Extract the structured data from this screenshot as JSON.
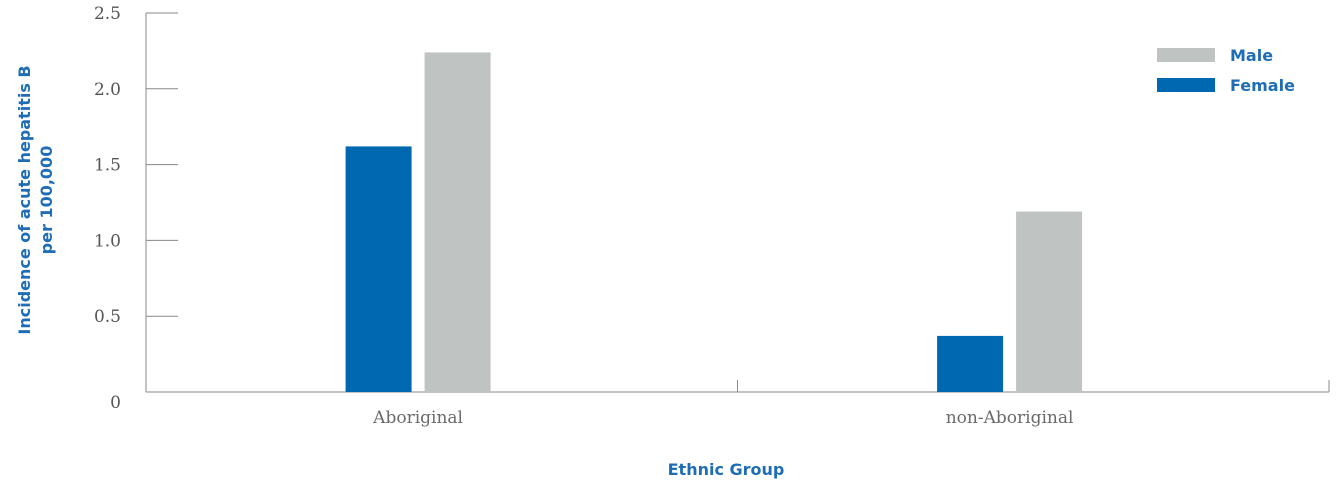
{
  "chart_data": {
    "type": "bar",
    "categories": [
      "Aboriginal",
      "non-Aboriginal"
    ],
    "series": [
      {
        "name": "Female",
        "values": [
          1.62,
          0.37
        ],
        "color": "#0067b1"
      },
      {
        "name": "Male",
        "values": [
          2.24,
          1.19
        ],
        "color": "#bfc3c1"
      }
    ],
    "title": "",
    "xlabel": "Ethnic Group",
    "ylabel": [
      "Incidence of acute hepatitis B",
      "per 100,000"
    ],
    "ylim": [
      0,
      2.5
    ],
    "yticks": [
      "0",
      "0.5",
      "1.0",
      "1.5",
      "2.0",
      "2.5"
    ],
    "legend": {
      "position": "top-right",
      "order": [
        "Male",
        "Female"
      ]
    },
    "grid": false,
    "accent_color": "#1f6eb5",
    "axis_color": "#888888"
  }
}
